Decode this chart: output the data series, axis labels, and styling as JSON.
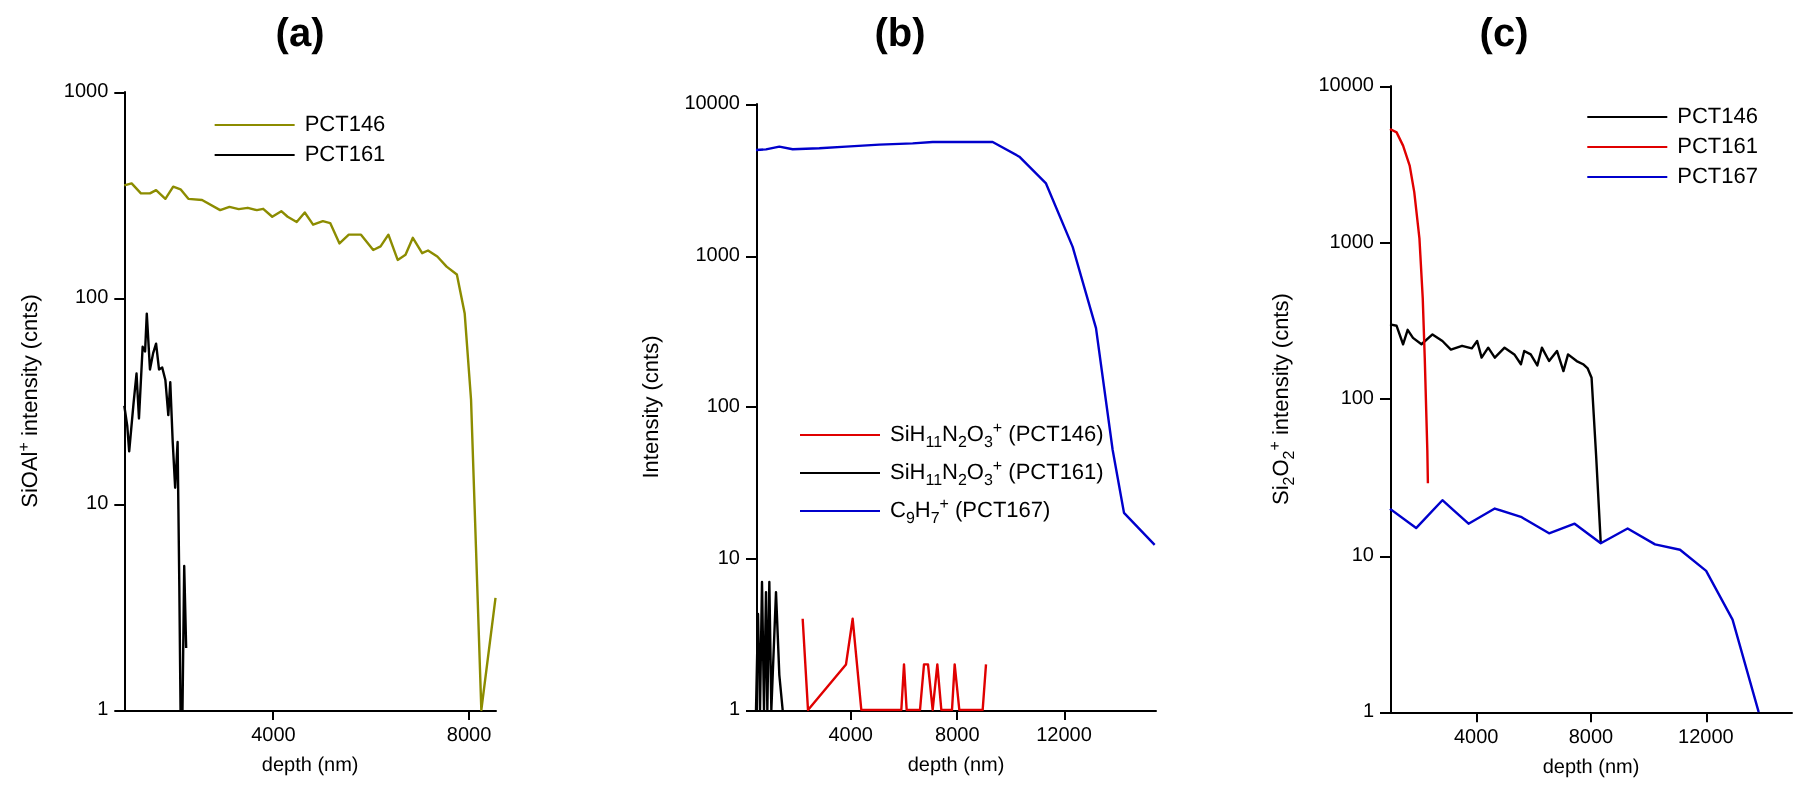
{
  "chart_data": [
    {
      "type": "line",
      "title": "(a)",
      "xlabel": "depth (nm)",
      "ylabel": "SiOAl$^{+}$ intensity (cnts)",
      "log": "y",
      "marker": "none",
      "legend": "top",
      "xlim": [
        950,
        8550
      ],
      "xticks": [
        4000,
        8000
      ],
      "ylim": [
        1,
        1000
      ],
      "yticks": [
        1,
        10,
        100,
        1000
      ],
      "series": [
        {
          "name": "PCT146",
          "color": "#8c8c00",
          "x": [
            950,
            1100,
            1290,
            1475,
            1600,
            1790,
            1950,
            2100,
            2260,
            2540,
            2910,
            3100,
            3290,
            3475,
            3660,
            3790,
            3975,
            4160,
            4290,
            4475,
            4640,
            4810,
            5010,
            5160,
            5350,
            5540,
            5790,
            6040,
            6190,
            6350,
            6540,
            6700,
            6850,
            7040,
            7160,
            7350,
            7540,
            7750,
            7910,
            8040,
            8140,
            8250,
            8540
          ],
          "values": [
            352,
            360,
            322,
            322,
            334,
            303,
            347,
            337,
            303,
            299,
            267,
            277,
            270,
            274,
            267,
            271,
            248,
            264,
            248,
            234,
            260,
            227,
            236,
            231,
            184,
            203,
            203,
            171,
            178,
            203,
            153,
            162,
            196,
            165,
            170,
            159,
            142,
            130,
            84,
            32,
            6.2,
            1,
            3.5
          ]
        },
        {
          "name": "PCT161",
          "color": "#000000",
          "x": [
            950,
            1010,
            1050,
            1140,
            1200,
            1250,
            1325,
            1375,
            1410,
            1475,
            1540,
            1600,
            1660,
            1725,
            1790,
            1850,
            1890,
            1940,
            1990,
            2040,
            2075,
            2100,
            2140,
            2175,
            2215
          ],
          "values": [
            30,
            24,
            18,
            31,
            43,
            26,
            58,
            55,
            84,
            45,
            54,
            60,
            45,
            46,
            40,
            27,
            39,
            20,
            12,
            20,
            4,
            1,
            1,
            5,
            2
          ]
        }
      ]
    },
    {
      "type": "line",
      "title": "(b)",
      "xlabel": "depth (nm)",
      "ylabel": "Intensity (cnts)",
      "log": "y",
      "marker": "none",
      "legend": "bottom left",
      "xlim": [
        450,
        15450
      ],
      "xticks": [
        4000,
        8000,
        12000
      ],
      "ylim": [
        1,
        10000
      ],
      "yticks": [
        1,
        10,
        100,
        1000,
        10000
      ],
      "series": [
        {
          "name": "SiH$_{11}$N$_{2}$O$_{3}$$^{+}$ (PCT146)",
          "color": "#e00000",
          "x": [
            2200,
            2400,
            3825,
            4075,
            4400,
            5900,
            6000,
            6100,
            6600,
            6750,
            6900,
            7075,
            7250,
            7400,
            7800,
            7900,
            8075,
            8950,
            9075
          ],
          "values": [
            4,
            1,
            2,
            4,
            1,
            1,
            2,
            1,
            1,
            2,
            2,
            1,
            2,
            1,
            1,
            2,
            1,
            1,
            2
          ]
        },
        {
          "name": "SiH$_{11}$N$_{2}$O$_{3}$$^{+}$ (PCT161)",
          "color": "#000000",
          "x": [
            450,
            525,
            600,
            675,
            750,
            825,
            875,
            950,
            1025,
            1200,
            1325,
            1450
          ],
          "values": [
            1,
            4.3,
            1,
            7,
            1,
            6,
            1,
            7,
            1,
            6,
            1.7,
            1
          ]
        },
        {
          "name": "C$_{9}$H$_{7}$$^{+}$ (PCT167)",
          "color": "#0000cc",
          "x": [
            450,
            825,
            1325,
            1825,
            2825,
            3825,
            5075,
            6325,
            7075,
            9325,
            10325,
            11325,
            12325,
            13200,
            13825,
            14250,
            15400
          ],
          "values": [
            4970,
            5020,
            5230,
            5030,
            5100,
            5230,
            5390,
            5500,
            5610,
            5610,
            4490,
            2990,
            1140,
            332,
            52,
            20,
            12.3
          ]
        }
      ]
    },
    {
      "type": "line",
      "title": "(c)",
      "xlabel": "depth (nm)",
      "ylabel": "Si$_{2}$O$_{2}$$^{+}$ intensity (cnts)",
      "log": "y",
      "marker": "none",
      "legend": "top right",
      "xlim": [
        1000,
        15000
      ],
      "xticks": [
        4000,
        8000,
        12000
      ],
      "ylim": [
        1,
        10000
      ],
      "yticks": [
        1,
        10,
        100,
        1000,
        10000
      ],
      "series": [
        {
          "name": "PCT146",
          "color": "#000000",
          "x": [
            1000,
            1230,
            1455,
            1615,
            1800,
            2095,
            2480,
            2825,
            3120,
            3510,
            3850,
            4035,
            4190,
            4420,
            4650,
            4990,
            5330,
            5560,
            5675,
            5900,
            6130,
            6290,
            6540,
            6815,
            7040,
            7200,
            7500,
            7725,
            7885,
            8020,
            8180,
            8340
          ],
          "values": [
            300,
            294,
            224,
            277,
            246,
            224,
            259,
            235,
            207,
            219,
            211,
            235,
            184,
            213,
            184,
            213,
            193,
            167,
            203,
            193,
            164,
            213,
            175,
            203,
            151,
            193,
            175,
            167,
            157,
            137,
            43,
            12
          ]
        },
        {
          "name": "PCT161",
          "color": "#e00000",
          "x": [
            1000,
            1230,
            1455,
            1685,
            1845,
            2025,
            2140,
            2210,
            2300,
            2320
          ],
          "values": [
            5310,
            5055,
            4160,
            3105,
            2100,
            1063,
            442,
            184,
            47,
            29
          ]
        },
        {
          "name": "PCT167",
          "color": "#0000cc",
          "x": [
            1000,
            1910,
            2825,
            3735,
            4650,
            5560,
            6540,
            7430,
            8340,
            9275,
            10230,
            11100,
            12010,
            12930,
            13840
          ],
          "values": [
            19.9,
            15,
            22.6,
            16,
            20,
            17.7,
            13.9,
            16,
            12,
            14.9,
            11.8,
            10.9,
            8,
            3.9,
            1
          ]
        }
      ]
    }
  ]
}
